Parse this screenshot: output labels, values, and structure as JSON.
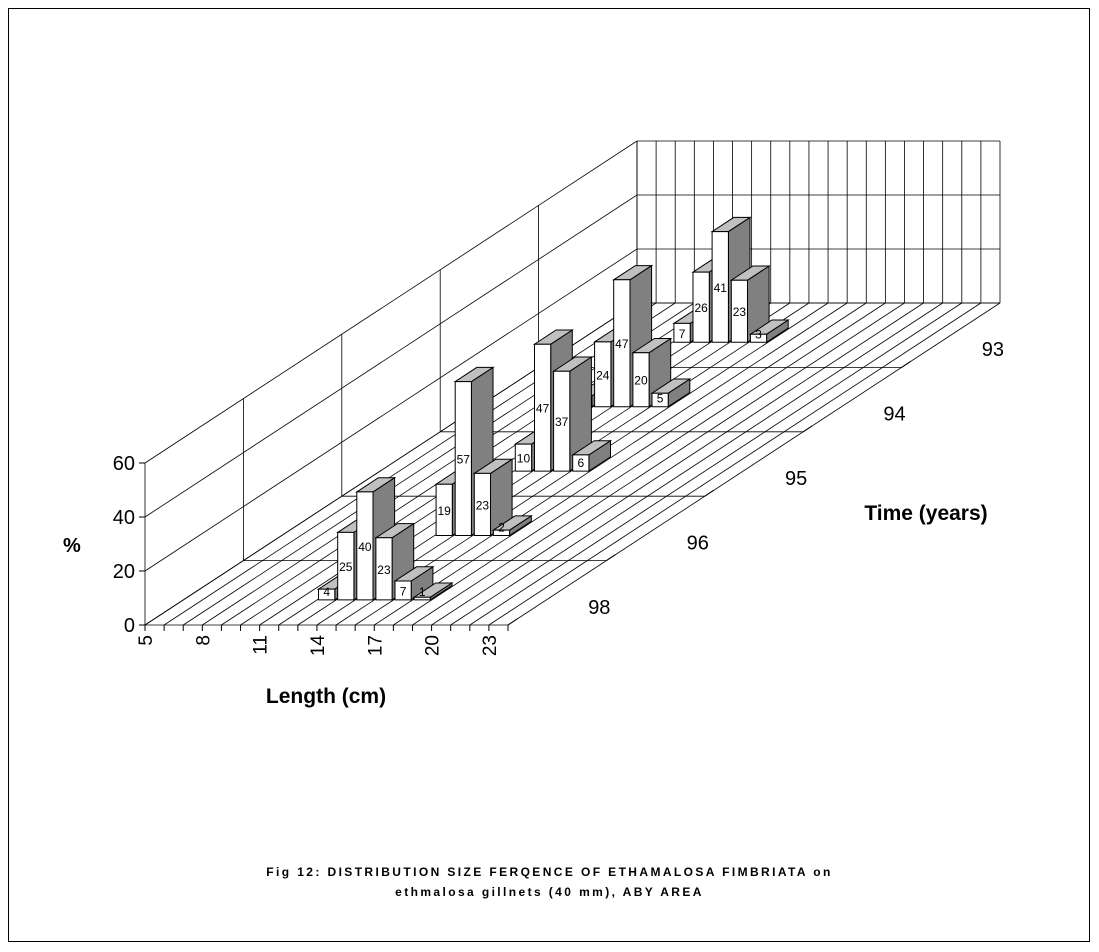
{
  "chart_data": {
    "type": "bar",
    "subtype": "3d-column",
    "x_categories": [
      "5",
      "6",
      "7",
      "8",
      "9",
      "10",
      "11",
      "12",
      "13",
      "14",
      "15",
      "16",
      "17",
      "18",
      "19",
      "20",
      "21",
      "22",
      "23"
    ],
    "x_tick_labels": [
      "5",
      "8",
      "11",
      "14",
      "17",
      "20",
      "23"
    ],
    "z_series_order": [
      "98",
      "96",
      "95",
      "94",
      "93"
    ],
    "series": [
      {
        "name": "98",
        "points": [
          {
            "x": "12",
            "value": 4
          },
          {
            "x": "13",
            "value": 25
          },
          {
            "x": "14",
            "value": 40
          },
          {
            "x": "15",
            "value": 23
          },
          {
            "x": "16",
            "value": 7
          },
          {
            "x": "17",
            "value": 1
          }
        ]
      },
      {
        "name": "96",
        "points": [
          {
            "x": "13",
            "value": 19
          },
          {
            "x": "14",
            "value": 57
          },
          {
            "x": "15",
            "value": 23
          },
          {
            "x": "16",
            "value": 2
          }
        ]
      },
      {
        "name": "95",
        "points": [
          {
            "x": "12",
            "value": 10
          },
          {
            "x": "13",
            "value": 47
          },
          {
            "x": "14",
            "value": 37
          },
          {
            "x": "15",
            "value": 6
          }
        ]
      },
      {
        "name": "94",
        "points": [
          {
            "x": "10",
            "value": 4
          },
          {
            "x": "11",
            "value": 24
          },
          {
            "x": "12",
            "value": 47
          },
          {
            "x": "13",
            "value": 20
          },
          {
            "x": "14",
            "value": 5
          }
        ]
      },
      {
        "name": "93",
        "points": [
          {
            "x": "10",
            "value": 7
          },
          {
            "x": "11",
            "value": 26
          },
          {
            "x": "12",
            "value": 41
          },
          {
            "x": "13",
            "value": 23
          },
          {
            "x": "14",
            "value": 3
          }
        ]
      }
    ],
    "y_ticks": [
      0,
      20,
      40,
      60
    ],
    "ylim": [
      0,
      60
    ],
    "ylabel": "%",
    "xlabel": "Length (cm)",
    "zlabel": "Time (years)",
    "grid": true,
    "colors": {
      "front": "#ffffff",
      "side": "#808080",
      "top": "#c0c0c0",
      "edge": "#000000"
    }
  },
  "caption": {
    "line1": "Fig 12: DISTRIBUTION SIZE FERQENCE OF ETHAMALOSA FIMBRIATA on",
    "line2": "ethmalosa gillnets (40 mm),  ABY AREA"
  }
}
